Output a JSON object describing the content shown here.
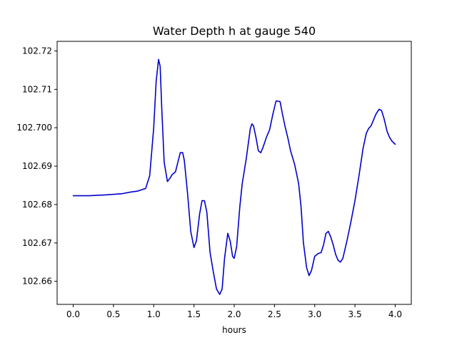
{
  "chart_data": {
    "type": "line",
    "title": "Water Depth h at gauge 540",
    "xlabel": "hours",
    "ylabel": "",
    "xlim": [
      -0.2,
      4.2
    ],
    "ylim": [
      102.654,
      102.7225
    ],
    "x_ticks": [
      0.0,
      0.5,
      1.0,
      1.5,
      2.0,
      2.5,
      3.0,
      3.5,
      4.0
    ],
    "x_tick_labels": [
      "0.0",
      "0.5",
      "1.0",
      "1.5",
      "2.0",
      "2.5",
      "3.0",
      "3.5",
      "4.0"
    ],
    "y_ticks": [
      102.66,
      102.67,
      102.68,
      102.69,
      102.7,
      102.71,
      102.72
    ],
    "y_tick_labels": [
      "102.66",
      "102.67",
      "102.68",
      "102.69",
      "102.700",
      "102.71",
      "102.72"
    ],
    "grid": false,
    "legend": "none",
    "line_color": "#0000cc",
    "series": [
      {
        "x": [
          0.0,
          0.2,
          0.4,
          0.6,
          0.7,
          0.8,
          0.9,
          0.95,
          1.0,
          1.03,
          1.06,
          1.08,
          1.1,
          1.13,
          1.17,
          1.2,
          1.23,
          1.27,
          1.3,
          1.33,
          1.36,
          1.38,
          1.42,
          1.46,
          1.5,
          1.53,
          1.57,
          1.6,
          1.63,
          1.66,
          1.7,
          1.74,
          1.78,
          1.82,
          1.85,
          1.88,
          1.92,
          1.95,
          1.98,
          2.0,
          2.03,
          2.07,
          2.1,
          2.15,
          2.2,
          2.22,
          2.24,
          2.27,
          2.3,
          2.33,
          2.36,
          2.4,
          2.44,
          2.48,
          2.52,
          2.57,
          2.6,
          2.63,
          2.67,
          2.7,
          2.75,
          2.8,
          2.83,
          2.86,
          2.9,
          2.93,
          2.96,
          3.0,
          3.04,
          3.08,
          3.11,
          3.14,
          3.17,
          3.2,
          3.23,
          3.26,
          3.29,
          3.32,
          3.35,
          3.4,
          3.45,
          3.5,
          3.55,
          3.6,
          3.64,
          3.67,
          3.7,
          3.73,
          3.76,
          3.8,
          3.83,
          3.86,
          3.9,
          3.93,
          3.96,
          4.0
        ],
        "y": [
          102.6823,
          102.6823,
          102.6825,
          102.6828,
          102.6832,
          102.6835,
          102.6842,
          102.6875,
          102.7,
          102.712,
          102.7178,
          102.716,
          102.705,
          102.691,
          102.686,
          102.6868,
          102.6878,
          102.6885,
          102.691,
          102.6935,
          102.6935,
          102.6915,
          102.683,
          102.673,
          102.6688,
          102.6705,
          102.6775,
          102.681,
          102.681,
          102.678,
          102.6675,
          102.6625,
          102.658,
          102.6566,
          102.658,
          102.666,
          102.6725,
          102.6705,
          102.6665,
          102.666,
          102.669,
          102.6795,
          102.6855,
          102.692,
          102.6998,
          102.701,
          102.7005,
          102.6975,
          102.694,
          102.6935,
          102.695,
          102.6975,
          102.6995,
          102.7035,
          102.707,
          102.7068,
          102.7035,
          102.7005,
          102.697,
          102.694,
          102.6905,
          102.6855,
          102.6795,
          102.67,
          102.6635,
          102.6615,
          102.6628,
          102.6665,
          102.6672,
          102.6675,
          102.6695,
          102.6725,
          102.673,
          102.6715,
          102.6695,
          102.667,
          102.6655,
          102.665,
          102.666,
          102.6705,
          102.6755,
          102.681,
          102.6875,
          102.6945,
          102.6985,
          102.6998,
          102.7005,
          102.702,
          102.7035,
          102.7048,
          102.7045,
          102.7025,
          102.699,
          102.6975,
          102.6965,
          102.6957
        ]
      }
    ]
  }
}
